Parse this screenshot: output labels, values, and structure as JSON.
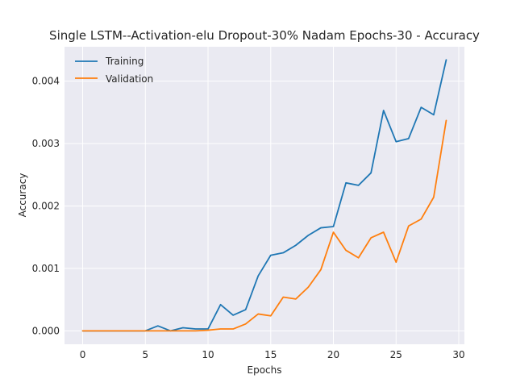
{
  "chart_data": {
    "type": "line",
    "title": "Single LSTM--Activation-elu Dropout-30% Nadam Epochs-30 - Accuracy",
    "xlabel": "Epochs",
    "ylabel": "Accuracy",
    "xlim": [
      -1.45,
      30.45
    ],
    "ylim": [
      -0.000215,
      0.00455
    ],
    "xticks": [
      0,
      5,
      10,
      15,
      20,
      25,
      30
    ],
    "yticks": [
      0.0,
      0.001,
      0.002,
      0.003,
      0.004
    ],
    "ytick_labels": [
      "0.000",
      "0.001",
      "0.002",
      "0.003",
      "0.004"
    ],
    "grid": true,
    "legend_position": "top-left",
    "background": "#eaeaf2",
    "x": [
      0,
      1,
      2,
      3,
      4,
      5,
      6,
      7,
      8,
      9,
      10,
      11,
      12,
      13,
      14,
      15,
      16,
      17,
      18,
      19,
      20,
      21,
      22,
      23,
      24,
      25,
      26,
      27,
      28,
      29
    ],
    "series": [
      {
        "name": "Training",
        "color": "#1f77b4",
        "values": [
          0.0,
          0.0,
          0.0,
          0.0,
          0.0,
          0.0,
          8e-05,
          0.0,
          5e-05,
          3e-05,
          3e-05,
          0.00042,
          0.00025,
          0.00034,
          0.00088,
          0.00121,
          0.00125,
          0.00137,
          0.00153,
          0.00165,
          0.00167,
          0.00237,
          0.00233,
          0.00253,
          0.00353,
          0.00303,
          0.00308,
          0.00358,
          0.00346,
          0.00434
        ]
      },
      {
        "name": "Validation",
        "color": "#ff7f0e",
        "values": [
          0.0,
          0.0,
          0.0,
          0.0,
          0.0,
          0.0,
          0.0,
          0.0,
          0.0,
          0.0,
          1e-05,
          3e-05,
          3e-05,
          0.00011,
          0.00027,
          0.00024,
          0.00054,
          0.00051,
          0.0007,
          0.00098,
          0.00158,
          0.00129,
          0.00117,
          0.00149,
          0.00158,
          0.0011,
          0.00168,
          0.00179,
          0.00214,
          0.00337
        ]
      }
    ]
  }
}
